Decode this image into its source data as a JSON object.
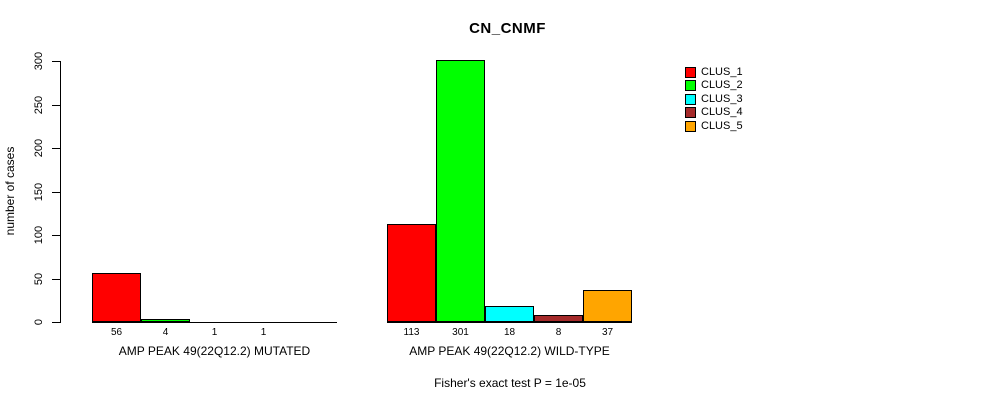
{
  "chart_data": {
    "type": "bar",
    "title": "CN_CNMF",
    "ylabel": "number of cases",
    "ylim": [
      0,
      300
    ],
    "yticks": [
      0,
      50,
      100,
      150,
      200,
      250,
      300
    ],
    "grid": false,
    "legend_position": "right-outside",
    "clusters": [
      {
        "name": "CLUS_1",
        "color": "#FF0000"
      },
      {
        "name": "CLUS_2",
        "color": "#00FF00"
      },
      {
        "name": "CLUS_3",
        "color": "#00FFFF"
      },
      {
        "name": "CLUS_4",
        "color": "#A52A2A"
      },
      {
        "name": "CLUS_5",
        "color": "#FFA500"
      }
    ],
    "groups": [
      {
        "label": "AMP PEAK 49(22Q12.2) MUTATED",
        "values": [
          56,
          4,
          1,
          1,
          0
        ],
        "value_labels": [
          "56",
          "4",
          "1",
          "1",
          ""
        ]
      },
      {
        "label": "AMP PEAK 49(22Q12.2) WILD-TYPE",
        "values": [
          113,
          301,
          18,
          8,
          37
        ],
        "value_labels": [
          "113",
          "301",
          "18",
          "8",
          "37"
        ]
      }
    ],
    "footnote": "Fisher's exact test P = 1e-05"
  }
}
